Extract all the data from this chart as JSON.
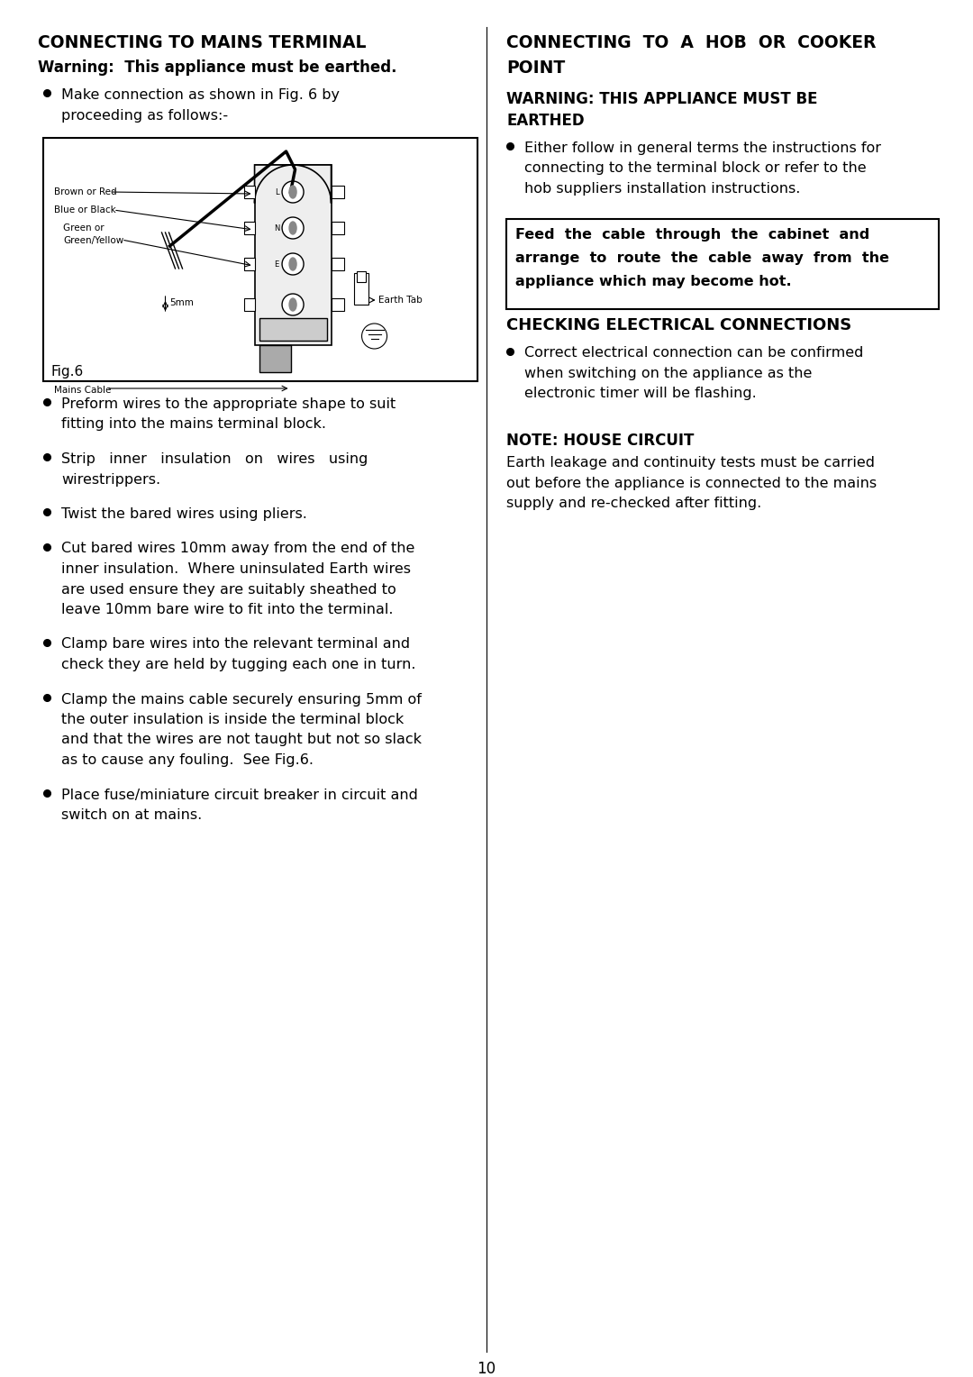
{
  "bg_color": "#ffffff",
  "page_number": "10",
  "left_col": {
    "title": "CONNECTING TO MAINS TERMINAL",
    "subtitle": "Warning:  This appliance must be earthed.",
    "bullet0_line1": "Make connection as shown in Fig. 6 by",
    "bullet0_line2": "proceeding as follows:-",
    "fig_caption": "Fig.6",
    "bullets": [
      [
        "Preform wires to the appropriate shape to suit",
        "fitting into the mains terminal block."
      ],
      [
        "Strip   inner   insulation   on   wires   using",
        "wirestrippers."
      ],
      [
        "Twist the bared wires using pliers."
      ],
      [
        "Cut bared wires 10mm away from the end of the",
        "inner insulation.  Where uninsulated Earth wires",
        "are used ensure they are suitably sheathed to",
        "leave 10mm bare wire to fit into the terminal."
      ],
      [
        "Clamp bare wires into the relevant terminal and",
        "check they are held by tugging each one in turn."
      ],
      [
        "Clamp the mains cable securely ensuring 5mm of",
        "the outer insulation is inside the terminal block",
        "and that the wires are not taught but not so slack",
        "as to cause any fouling.  See Fig.6."
      ],
      [
        "Place fuse/miniature circuit breaker in circuit and",
        "switch on at mains."
      ]
    ]
  },
  "right_col": {
    "title_line1": "CONNECTING  TO  A  HOB  OR  COOKER",
    "title_line2": "POINT",
    "warning_line1": "WARNING: THIS APPLIANCE MUST BE",
    "warning_line2": "EARTHED",
    "bullet1_lines": [
      "Either follow in general terms the instructions for",
      "connecting to the terminal block or refer to the",
      "hob suppliers installation instructions."
    ],
    "box_lines": [
      "Feed  the  cable  through  the  cabinet  and",
      "arrange  to  route  the  cable  away  from  the",
      "appliance which may become hot."
    ],
    "section2_title": "CHECKING ELECTRICAL CONNECTIONS",
    "section2_bullet_lines": [
      "Correct electrical connection can be confirmed",
      "when switching on the appliance as the",
      "electronic timer will be flashing."
    ],
    "note_title": "NOTE: HOUSE CIRCUIT",
    "note_lines": [
      "Earth leakage and continuity tests must be carried",
      "out before the appliance is connected to the mains",
      "supply and re-checked after fitting."
    ]
  }
}
